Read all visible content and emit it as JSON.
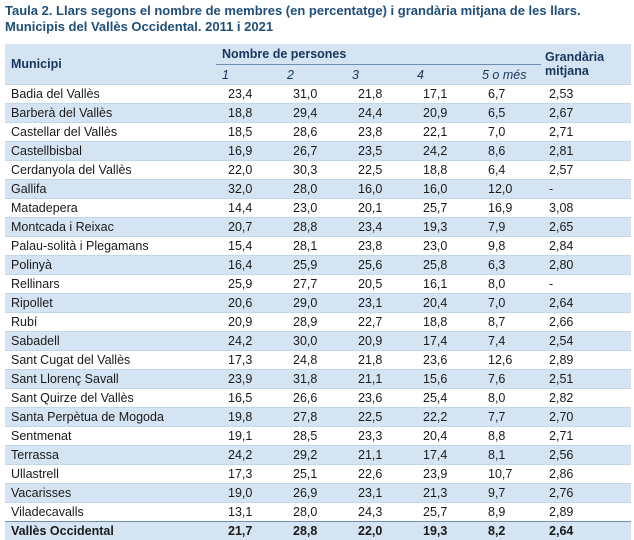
{
  "title": "Taula 2. Llars segons el nombre de membres (en percentatge)  i grandària mitjana de les llars. Municipis del Vallès Occidental. 2011 i 2021",
  "headers": {
    "municipi": "Municipi",
    "group": "Nombre de persones",
    "cols": [
      "1",
      "2",
      "3",
      "4",
      "5 o més"
    ],
    "grandaria": "Grandària mitjana"
  },
  "rows": [
    [
      "Badia del Vallès",
      "23,4",
      "31,0",
      "21,8",
      "17,1",
      "6,7",
      "2,53"
    ],
    [
      "Barberà del Vallès",
      "18,8",
      "29,4",
      "24,4",
      "20,9",
      "6,5",
      "2,67"
    ],
    [
      "Castellar del Vallès",
      "18,5",
      "28,6",
      "23,8",
      "22,1",
      "7,0",
      "2,71"
    ],
    [
      "Castellbisbal",
      "16,9",
      "26,7",
      "23,5",
      "24,2",
      "8,6",
      "2,81"
    ],
    [
      "Cerdanyola del Vallès",
      "22,0",
      "30,3",
      "22,5",
      "18,8",
      "6,4",
      "2,57"
    ],
    [
      "Gallifa",
      "32,0",
      "28,0",
      "16,0",
      "16,0",
      "12,0",
      "-"
    ],
    [
      "Matadepera",
      "14,4",
      "23,0",
      "20,1",
      "25,7",
      "16,9",
      "3,08"
    ],
    [
      "Montcada i Reixac",
      "20,7",
      "28,8",
      "23,4",
      "19,3",
      "7,9",
      "2,65"
    ],
    [
      "Palau-solità i Plegamans",
      "15,4",
      "28,1",
      "23,8",
      "23,0",
      "9,8",
      "2,84"
    ],
    [
      "Polinyà",
      "16,4",
      "25,9",
      "25,6",
      "25,8",
      "6,3",
      "2,80"
    ],
    [
      "Rellinars",
      "25,9",
      "27,7",
      "20,5",
      "16,1",
      "8,0",
      "-"
    ],
    [
      "Ripollet",
      "20,6",
      "29,0",
      "23,1",
      "20,4",
      "7,0",
      "2,64"
    ],
    [
      "Rubí",
      "20,9",
      "28,9",
      "22,7",
      "18,8",
      "8,7",
      "2,66"
    ],
    [
      "Sabadell",
      "24,2",
      "30,0",
      "20,9",
      "17,4",
      "7,4",
      "2,54"
    ],
    [
      "Sant Cugat del Vallès",
      "17,3",
      "24,8",
      "21,8",
      "23,6",
      "12,6",
      "2,89"
    ],
    [
      "Sant Llorenç Savall",
      "23,9",
      "31,8",
      "21,1",
      "15,6",
      "7,6",
      "2,51"
    ],
    [
      "Sant Quirze del Vallès",
      "16,5",
      "26,6",
      "23,6",
      "25,4",
      "8,0",
      "2,82"
    ],
    [
      "Santa Perpètua de Mogoda",
      "19,8",
      "27,8",
      "22,5",
      "22,2",
      "7,7",
      "2,70"
    ],
    [
      "Sentmenat",
      "19,1",
      "28,5",
      "23,3",
      "20,4",
      "8,8",
      "2,71"
    ],
    [
      "Terrassa",
      "24,2",
      "29,2",
      "21,1",
      "17,4",
      "8,1",
      "2,56"
    ],
    [
      "Ullastrell",
      "17,3",
      "25,1",
      "22,6",
      "23,9",
      "10,7",
      "2,86"
    ],
    [
      "Vacarisses",
      "19,0",
      "26,9",
      "23,1",
      "21,3",
      "9,7",
      "2,76"
    ],
    [
      "Viladecavalls",
      "13,1",
      "28,0",
      "24,3",
      "25,7",
      "8,9",
      "2,89"
    ]
  ],
  "total": [
    "Vallès Occidental",
    "21,7",
    "28,8",
    "22,0",
    "19,3",
    "8,2",
    "2,64"
  ]
}
